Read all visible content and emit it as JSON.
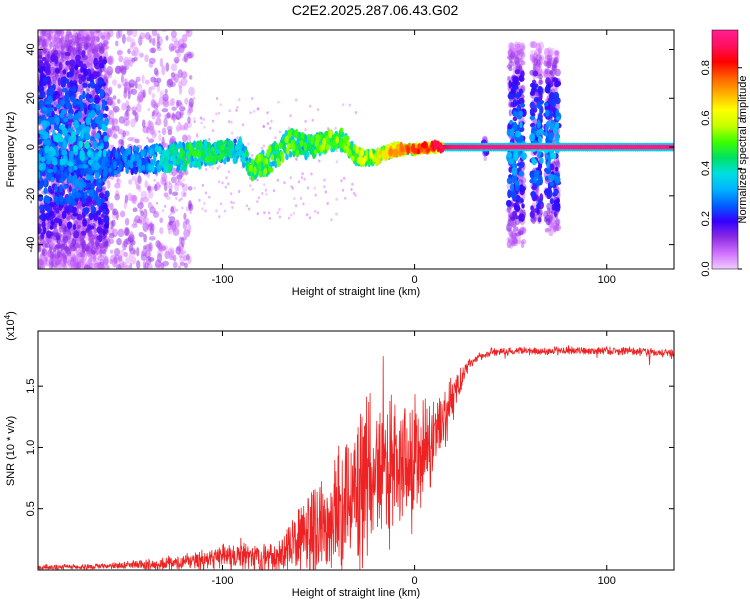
{
  "title": "C2E2.2025.287.06.43.G02",
  "chart_data": [
    {
      "type": "heatmap",
      "title": "",
      "xlabel": "Height of straight line (km)",
      "ylabel": "Frequency (Hz)",
      "xlim": [
        -196,
        135
      ],
      "ylim": [
        -50,
        48
      ],
      "xticks": [
        -100,
        0,
        100
      ],
      "yticks": [
        -40,
        -20,
        0,
        20,
        40
      ],
      "colorbar": {
        "label": "Normalized spectral amplitude",
        "range": [
          0,
          0.95
        ],
        "ticks": [
          "0.0",
          "0.2",
          "0.4",
          "0.6",
          "0.8"
        ],
        "tick_values": [
          0.0,
          0.2,
          0.4,
          0.6,
          0.8
        ],
        "colors": [
          "#f0ccff",
          "#d070ff",
          "#8a2be2",
          "#3300ff",
          "#0060ff",
          "#00b4ff",
          "#00e0e0",
          "#00e060",
          "#40ff00",
          "#c8ff00",
          "#ffff00",
          "#ffb000",
          "#ff6000",
          "#ff0000",
          "#ff1060",
          "#ff2090"
        ]
      },
      "ridge": {
        "x": [
          -196,
          -160,
          -140,
          -120,
          -100,
          -90,
          -85,
          -75,
          -65,
          -55,
          -45,
          -38,
          -30,
          -20,
          -10,
          0,
          10,
          20,
          35,
          50,
          60,
          75,
          100,
          135
        ],
        "frequency": [
          -7,
          -6,
          -5,
          -4,
          -2,
          -1,
          -10,
          -5,
          2,
          0,
          3,
          3,
          -4,
          -4,
          -1,
          -1,
          0,
          0,
          0,
          0,
          0,
          0,
          0,
          0
        ],
        "amplitude": [
          0.22,
          0.25,
          0.3,
          0.45,
          0.45,
          0.35,
          0.5,
          0.5,
          0.5,
          0.45,
          0.55,
          0.5,
          0.55,
          0.6,
          0.7,
          0.75,
          0.8,
          0.9,
          0.92,
          0.92,
          0.92,
          0.93,
          0.93,
          0.93
        ],
        "spread": [
          40,
          40,
          30,
          10,
          8,
          8,
          8,
          10,
          10,
          8,
          8,
          8,
          6,
          5,
          4,
          3,
          3,
          2,
          2,
          2,
          2,
          2,
          2,
          2
        ]
      },
      "bursts": [
        {
          "x_start": -196,
          "x_end": -160,
          "f_min": -50,
          "f_max": 48
        },
        {
          "x_start": 36,
          "x_end": 38,
          "f_min": -5,
          "f_max": 5
        },
        {
          "x_start": 49,
          "x_end": 57,
          "f_min": -40,
          "f_max": 42
        },
        {
          "x_start": 61,
          "x_end": 66,
          "f_min": -30,
          "f_max": 42
        },
        {
          "x_start": 68,
          "x_end": 75,
          "f_min": -35,
          "f_max": 40
        }
      ]
    },
    {
      "type": "line",
      "title": "",
      "xlabel": "Height of straight line (km)",
      "ylabel": "SNR (10 * v/v)",
      "y_multiplier_label": "(x10",
      "y_multiplier_exp": "4",
      "xlim": [
        -196,
        135
      ],
      "ylim": [
        0,
        1.95
      ],
      "xticks": [
        -100,
        0,
        100
      ],
      "yticks": [
        0.5,
        1.0,
        1.5
      ],
      "ytick_labels": [
        "0.5",
        "1.0",
        "1.5"
      ],
      "color": "#ee2222",
      "envelope": {
        "x": [
          -196,
          -160,
          -140,
          -120,
          -100,
          -90,
          -80,
          -70,
          -60,
          -50,
          -40,
          -30,
          -25,
          -20,
          -10,
          0,
          10,
          20,
          25,
          30,
          40,
          60,
          80,
          100,
          120,
          135
        ],
        "mean": [
          0.02,
          0.03,
          0.04,
          0.06,
          0.1,
          0.1,
          0.08,
          0.12,
          0.25,
          0.35,
          0.45,
          0.6,
          0.75,
          0.8,
          0.8,
          0.9,
          1.1,
          1.4,
          1.6,
          1.7,
          1.78,
          1.79,
          1.79,
          1.79,
          1.78,
          1.76
        ],
        "noise": [
          0.02,
          0.02,
          0.04,
          0.06,
          0.1,
          0.12,
          0.1,
          0.12,
          0.25,
          0.35,
          0.45,
          0.6,
          0.7,
          0.6,
          0.5,
          0.45,
          0.3,
          0.2,
          0.08,
          0.04,
          0.03,
          0.03,
          0.03,
          0.03,
          0.03,
          0.03
        ]
      }
    }
  ]
}
